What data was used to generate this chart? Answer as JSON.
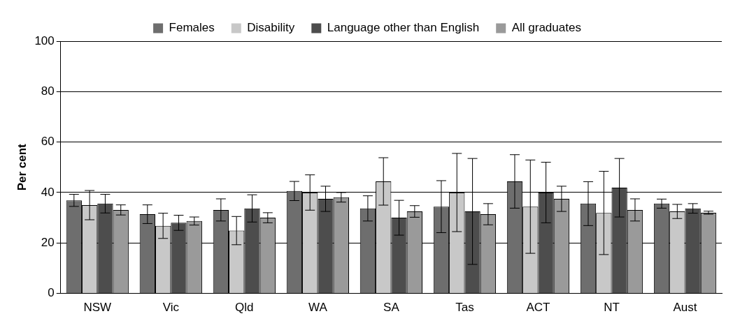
{
  "chart_data": {
    "type": "bar",
    "ylabel": "Per cent",
    "categories": [
      "NSW",
      "Vic",
      "Qld",
      "WA",
      "SA",
      "Tas",
      "ACT",
      "NT",
      "Aust"
    ],
    "series": [
      {
        "name": "Females",
        "color": "#6e6e6e",
        "values": [
          36.9,
          31.4,
          33.1,
          40.6,
          33.7,
          34.4,
          44.4,
          35.6,
          35.6
        ],
        "errors": [
          2.4,
          3.7,
          4.4,
          3.8,
          5,
          10.3,
          10.6,
          8.7,
          1.8
        ]
      },
      {
        "name": "Disability",
        "color": "#c8c8c8",
        "values": [
          35,
          26.8,
          24.9,
          40,
          44.4,
          40,
          34.4,
          31.9,
          32.5
        ],
        "errors": [
          5.8,
          5,
          5.6,
          7,
          9.4,
          15.5,
          18.5,
          16.5,
          2.8
        ]
      },
      {
        "name": "Language other than English",
        "color": "#4d4d4d",
        "values": [
          35.6,
          28,
          33.7,
          37.5,
          30,
          32.5,
          40,
          41.9,
          33.7
        ],
        "errors": [
          3.7,
          3,
          5.4,
          5,
          6.9,
          21,
          12,
          11.6,
          1.9
        ]
      },
      {
        "name": "All graduates",
        "color": "#9a9a9a",
        "values": [
          33.1,
          28.7,
          30,
          38.1,
          32.5,
          31.4,
          37.5,
          33.1,
          32
        ],
        "errors": [
          2,
          1.6,
          2,
          1.9,
          2.3,
          4.2,
          5,
          4.4,
          0.6
        ]
      }
    ],
    "ylim": [
      0,
      100
    ],
    "yticks": [
      0,
      20,
      40,
      60,
      80,
      100
    ],
    "grid": "y",
    "legend": "top"
  }
}
